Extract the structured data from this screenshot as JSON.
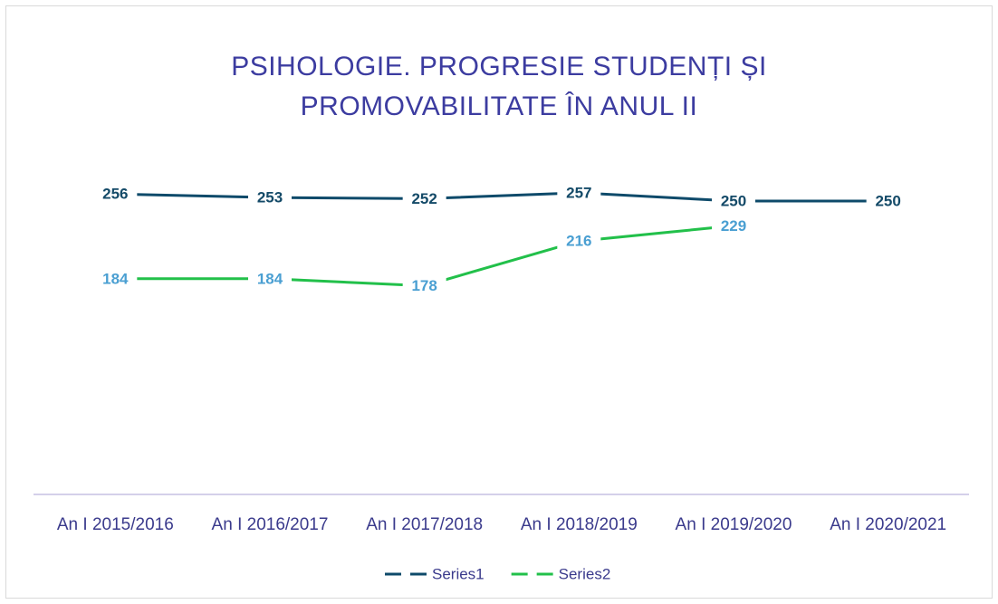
{
  "chart_data": {
    "type": "line",
    "title": "PSIHOLOGIE. PROGRESIE STUDENȚI ȘI PROMOVABILITATE ÎN ANUL II",
    "categories": [
      "An I 2015/2016",
      "An I 2016/2017",
      "An I 2017/2018",
      "An I 2018/2019",
      "An I 2019/2020",
      "An I 2020/2021"
    ],
    "series": [
      {
        "name": "Series1",
        "color": "#0e4a6a",
        "label_color": "#144a68",
        "values": [
          256,
          253,
          252,
          257,
          250,
          250
        ]
      },
      {
        "name": "Series2",
        "color": "#22c04a",
        "label_color": "#4a9fd2",
        "values": [
          184,
          184,
          178,
          216,
          229,
          null
        ]
      }
    ],
    "ylim": [
      0,
      300
    ],
    "legend": "bottom"
  }
}
